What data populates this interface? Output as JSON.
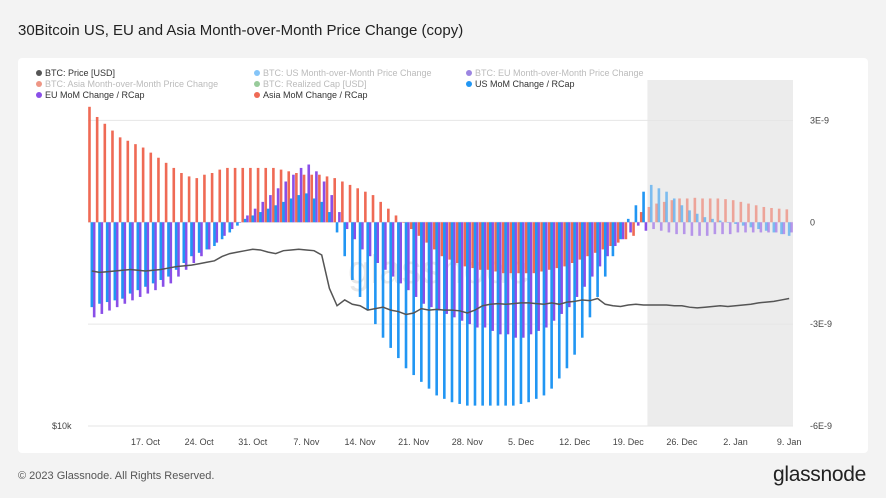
{
  "page": {
    "title": "30Bitcoin US, EU and Asia Month-over-Month Price Change (copy)",
    "footer": "© 2023 Glassnode. All Rights Reserved.",
    "brand": "glassnode",
    "watermark": "glassnode"
  },
  "colors": {
    "price": "#555555",
    "us": "#2196f3",
    "eu": "#8a4fe8",
    "asia": "#ef6a55",
    "eu_faded": "#4a20c8",
    "asia_faded": "#e04020",
    "realized": "#43a047"
  },
  "legend": [
    {
      "label": "BTC: Price [USD]",
      "color": "#555555",
      "faded": false
    },
    {
      "label": "BTC: US Month-over-Month Price Change",
      "color": "#2196f3",
      "faded": true
    },
    {
      "label": "BTC: EU Month-over-Month Price Change",
      "color": "#4a20c8",
      "faded": true
    },
    {
      "label": "BTC: Asia Month-over-Month Price Change",
      "color": "#e04020",
      "faded": true
    },
    {
      "label": "BTC: Realized Cap [USD]",
      "color": "#43a047",
      "faded": true
    },
    {
      "label": "US MoM Change / RCap",
      "color": "#2196f3",
      "faded": false
    },
    {
      "label": "EU MoM Change / RCap",
      "color": "#8a4fe8",
      "faded": false
    },
    {
      "label": "Asia MoM Change / RCap",
      "color": "#ef6a55",
      "faded": false
    }
  ],
  "chart_data": {
    "type": "bar",
    "title": "30Bitcoin US, EU and Asia Month-over-Month Price Change (copy)",
    "x_tick_labels": [
      "17. Oct",
      "24. Oct",
      "31. Oct",
      "7. Nov",
      "14. Nov",
      "21. Nov",
      "28. Nov",
      "5. Dec",
      "12. Dec",
      "19. Dec",
      "26. Dec",
      "2. Jan",
      "9. Jan"
    ],
    "x_tick_day_index": [
      7,
      14,
      21,
      28,
      35,
      42,
      49,
      56,
      63,
      70,
      77,
      84,
      91
    ],
    "y_right_ticks": [
      "3E-9",
      "0",
      "-3E-9",
      "-6E-9"
    ],
    "y_right_values": [
      3e-09,
      0,
      -3e-09,
      -6e-09
    ],
    "y_range": [
      -6e-09,
      3.6e-09
    ],
    "y_left_label": "$10k",
    "forecast_region_start_day": 73,
    "days": 92,
    "series": [
      {
        "name": "US MoM Change / RCap",
        "values": [
          -2.5e-09,
          -2.4e-09,
          -2.35e-09,
          -2.3e-09,
          -2.25e-09,
          -2.1e-09,
          -2e-09,
          -1.9e-09,
          -1.8e-09,
          -1.7e-09,
          -1.6e-09,
          -1.4e-09,
          -1.2e-09,
          -1e-09,
          -9e-10,
          -8e-10,
          -7e-10,
          -5e-10,
          -3e-10,
          -1e-10,
          1e-10,
          2e-10,
          3e-10,
          4e-10,
          5e-10,
          6e-10,
          7e-10,
          8e-10,
          8.5e-10,
          7e-10,
          6e-10,
          3e-10,
          -3e-10,
          -1e-09,
          -1.7e-09,
          -2.2e-09,
          -2.6e-09,
          -3e-09,
          -3.4e-09,
          -3.7e-09,
          -4e-09,
          -4.3e-09,
          -4.5e-09,
          -4.7e-09,
          -4.9e-09,
          -5.1e-09,
          -5.2e-09,
          -5.3e-09,
          -5.35e-09,
          -5.4e-09,
          -5.4e-09,
          -5.4e-09,
          -5.4e-09,
          -5.4e-09,
          -5.4e-09,
          -5.4e-09,
          -5.35e-09,
          -5.3e-09,
          -5.2e-09,
          -5.1e-09,
          -4.9e-09,
          -4.6e-09,
          -4.3e-09,
          -3.9e-09,
          -3.4e-09,
          -2.8e-09,
          -2.2e-09,
          -1.6e-09,
          -1e-09,
          -5e-10,
          1e-10,
          5e-10,
          9e-10,
          1.1e-09,
          1e-09,
          9e-10,
          7e-10,
          5e-10,
          3.5e-10,
          2.5e-10,
          1.5e-10,
          1e-10,
          5e-11,
          0,
          -5e-11,
          -1e-10,
          -1.5e-10,
          -2e-10,
          -2.5e-10,
          -3e-10,
          -3.5e-10,
          -4e-10
        ]
      },
      {
        "name": "EU MoM Change / RCap",
        "values": [
          -2.8e-09,
          -2.7e-09,
          -2.6e-09,
          -2.5e-09,
          -2.4e-09,
          -2.3e-09,
          -2.2e-09,
          -2.1e-09,
          -2e-09,
          -1.9e-09,
          -1.8e-09,
          -1.6e-09,
          -1.4e-09,
          -1.2e-09,
          -1e-09,
          -8e-10,
          -6e-10,
          -4e-10,
          -2e-10,
          0,
          2e-10,
          4e-10,
          6e-10,
          8e-10,
          1e-09,
          1.2e-09,
          1.4e-09,
          1.6e-09,
          1.7e-09,
          1.5e-09,
          1.2e-09,
          8e-10,
          3e-10,
          -2e-10,
          -5e-10,
          -8e-10,
          -1e-09,
          -1.2e-09,
          -1.4e-09,
          -1.6e-09,
          -1.8e-09,
          -2e-09,
          -2.2e-09,
          -2.4e-09,
          -2.5e-09,
          -2.6e-09,
          -2.7e-09,
          -2.8e-09,
          -2.9e-09,
          -3e-09,
          -3.1e-09,
          -3.1e-09,
          -3.2e-09,
          -3.3e-09,
          -3.3e-09,
          -3.4e-09,
          -3.4e-09,
          -3.3e-09,
          -3.2e-09,
          -3.1e-09,
          -2.9e-09,
          -2.7e-09,
          -2.5e-09,
          -2.2e-09,
          -1.9e-09,
          -1.6e-09,
          -1.3e-09,
          -1e-09,
          -7e-10,
          -5e-10,
          -3e-10,
          -1e-10,
          -2.5e-10,
          -2e-10,
          -2.5e-10,
          -3e-10,
          -3.5e-10,
          -3.5e-10,
          -4e-10,
          -4e-10,
          -4e-10,
          -3.5e-10,
          -3.5e-10,
          -3.5e-10,
          -3e-10,
          -3e-10,
          -3e-10,
          -3e-10,
          -3e-10,
          -3e-10,
          -3.5e-10,
          -3e-10
        ]
      },
      {
        "name": "Asia MoM Change / RCap",
        "values": [
          3.4e-09,
          3.1e-09,
          2.9e-09,
          2.7e-09,
          2.5e-09,
          2.4e-09,
          2.3e-09,
          2.2e-09,
          2.05e-09,
          1.9e-09,
          1.75e-09,
          1.6e-09,
          1.45e-09,
          1.35e-09,
          1.3e-09,
          1.4e-09,
          1.45e-09,
          1.55e-09,
          1.6e-09,
          1.6e-09,
          1.6e-09,
          1.6e-09,
          1.6e-09,
          1.6e-09,
          1.6e-09,
          1.55e-09,
          1.5e-09,
          1.45e-09,
          1.4e-09,
          1.4e-09,
          1.4e-09,
          1.35e-09,
          1.3e-09,
          1.2e-09,
          1.1e-09,
          1e-09,
          9e-10,
          8e-10,
          6e-10,
          4e-10,
          2e-10,
          0,
          -2e-10,
          -4e-10,
          -6e-10,
          -8e-10,
          -1e-09,
          -1.1e-09,
          -1.2e-09,
          -1.3e-09,
          -1.35e-09,
          -1.4e-09,
          -1.4e-09,
          -1.45e-09,
          -1.5e-09,
          -1.5e-09,
          -1.5e-09,
          -1.5e-09,
          -1.5e-09,
          -1.45e-09,
          -1.4e-09,
          -1.35e-09,
          -1.3e-09,
          -1.2e-09,
          -1.1e-09,
          -1e-09,
          -9e-10,
          -8e-10,
          -7e-10,
          -6e-10,
          -5e-10,
          -4e-10,
          3e-10,
          4.5e-10,
          5.5e-10,
          6e-10,
          6.5e-10,
          7e-10,
          7e-10,
          7.2e-10,
          7e-10,
          7e-10,
          7e-10,
          6.8e-10,
          6.5e-10,
          6e-10,
          5.5e-10,
          5e-10,
          4.5e-10,
          4.2e-10,
          4e-10,
          3.8e-10
        ]
      },
      {
        "name": "BTC: Price [USD]",
        "values": [
          19200,
          19100,
          19150,
          19200,
          19250,
          19300,
          19250,
          19200,
          19250,
          19300,
          19400,
          19500,
          19550,
          19600,
          19700,
          19800,
          19900,
          20200,
          20400,
          20500,
          20600,
          20700,
          20650,
          20500,
          20400,
          20600,
          20650,
          20700,
          20650,
          20600,
          20300,
          18000,
          16800,
          17200,
          16900,
          16800,
          16500,
          16600,
          16700,
          16500,
          16400,
          16200,
          16300,
          16600,
          16500,
          16550,
          16500,
          16500,
          16450,
          16300,
          16500,
          16800,
          16900,
          16950,
          16900,
          16950,
          17000,
          17000,
          16950,
          16900,
          17000,
          16900,
          17050,
          17100,
          17200,
          17150,
          17300,
          16900,
          16800,
          16750,
          16850,
          16900,
          16850,
          16850,
          16850,
          16850,
          16800,
          16800,
          16700,
          16650,
          16700,
          16750,
          16800,
          16750,
          16800,
          16850,
          16900,
          17000,
          17050,
          17100,
          17200,
          17300
        ]
      }
    ]
  }
}
